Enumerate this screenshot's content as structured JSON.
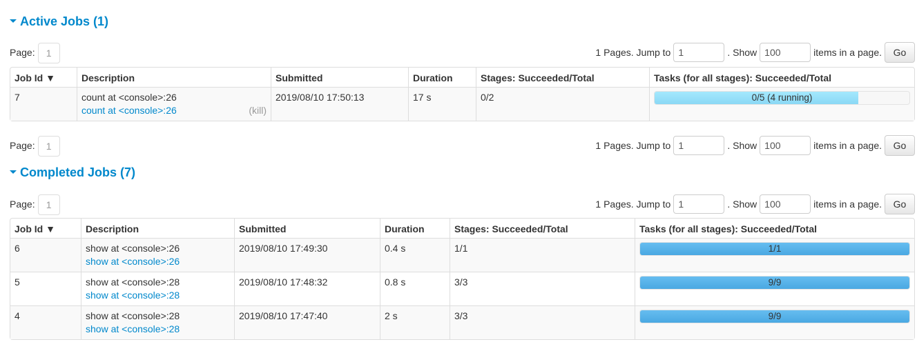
{
  "active": {
    "title": "Active Jobs (1)",
    "pager": {
      "page_label": "Page:",
      "page": "1",
      "pages_text": "1 Pages. Jump to",
      "jump_value": "1",
      "show_text": ". Show",
      "show_value": "100",
      "items_text": "items in a page.",
      "go": "Go"
    },
    "headers": [
      "Job Id ▼",
      "Description",
      "Submitted",
      "Duration",
      "Stages: Succeeded/Total",
      "Tasks (for all stages): Succeeded/Total"
    ],
    "rows": [
      {
        "id": "7",
        "desc": "count at <console>:26",
        "link": "count at <console>:26",
        "kill": "(kill)",
        "submitted": "2019/08/10 17:50:13",
        "duration": "17 s",
        "stages": "0/2",
        "tasks": "0/5 (4 running)",
        "succeeded_fraction": 0,
        "running_fraction": 0.8
      }
    ]
  },
  "completed": {
    "title": "Completed Jobs (7)",
    "pager": {
      "page_label": "Page:",
      "page": "1",
      "pages_text": "1 Pages. Jump to",
      "jump_value": "1",
      "show_text": ". Show",
      "show_value": "100",
      "items_text": "items in a page.",
      "go": "Go"
    },
    "headers": [
      "Job Id ▼",
      "Description",
      "Submitted",
      "Duration",
      "Stages: Succeeded/Total",
      "Tasks (for all stages): Succeeded/Total"
    ],
    "rows": [
      {
        "id": "6",
        "desc": "show at <console>:26",
        "link": "show at <console>:26",
        "submitted": "2019/08/10 17:49:30",
        "duration": "0.4 s",
        "stages": "1/1",
        "tasks": "1/1",
        "succeeded_fraction": 1
      },
      {
        "id": "5",
        "desc": "show at <console>:28",
        "link": "show at <console>:28",
        "submitted": "2019/08/10 17:48:32",
        "duration": "0.8 s",
        "stages": "3/3",
        "tasks": "9/9",
        "succeeded_fraction": 1
      },
      {
        "id": "4",
        "desc": "show at <console>:28",
        "link": "show at <console>:28",
        "submitted": "2019/08/10 17:47:40",
        "duration": "2 s",
        "stages": "3/3",
        "tasks": "9/9",
        "succeeded_fraction": 1
      }
    ]
  },
  "bottom_pager": {
    "page_label": "Page:",
    "page": "1",
    "pages_text": "1 Pages. Jump to",
    "jump_value": "1",
    "show_text": ". Show",
    "show_value": "100",
    "items_text": "items in a page.",
    "go": "Go"
  },
  "colors": {
    "accent": "#0088cc",
    "running": "#95e0fa",
    "succeeded": "#5bb4ea"
  }
}
